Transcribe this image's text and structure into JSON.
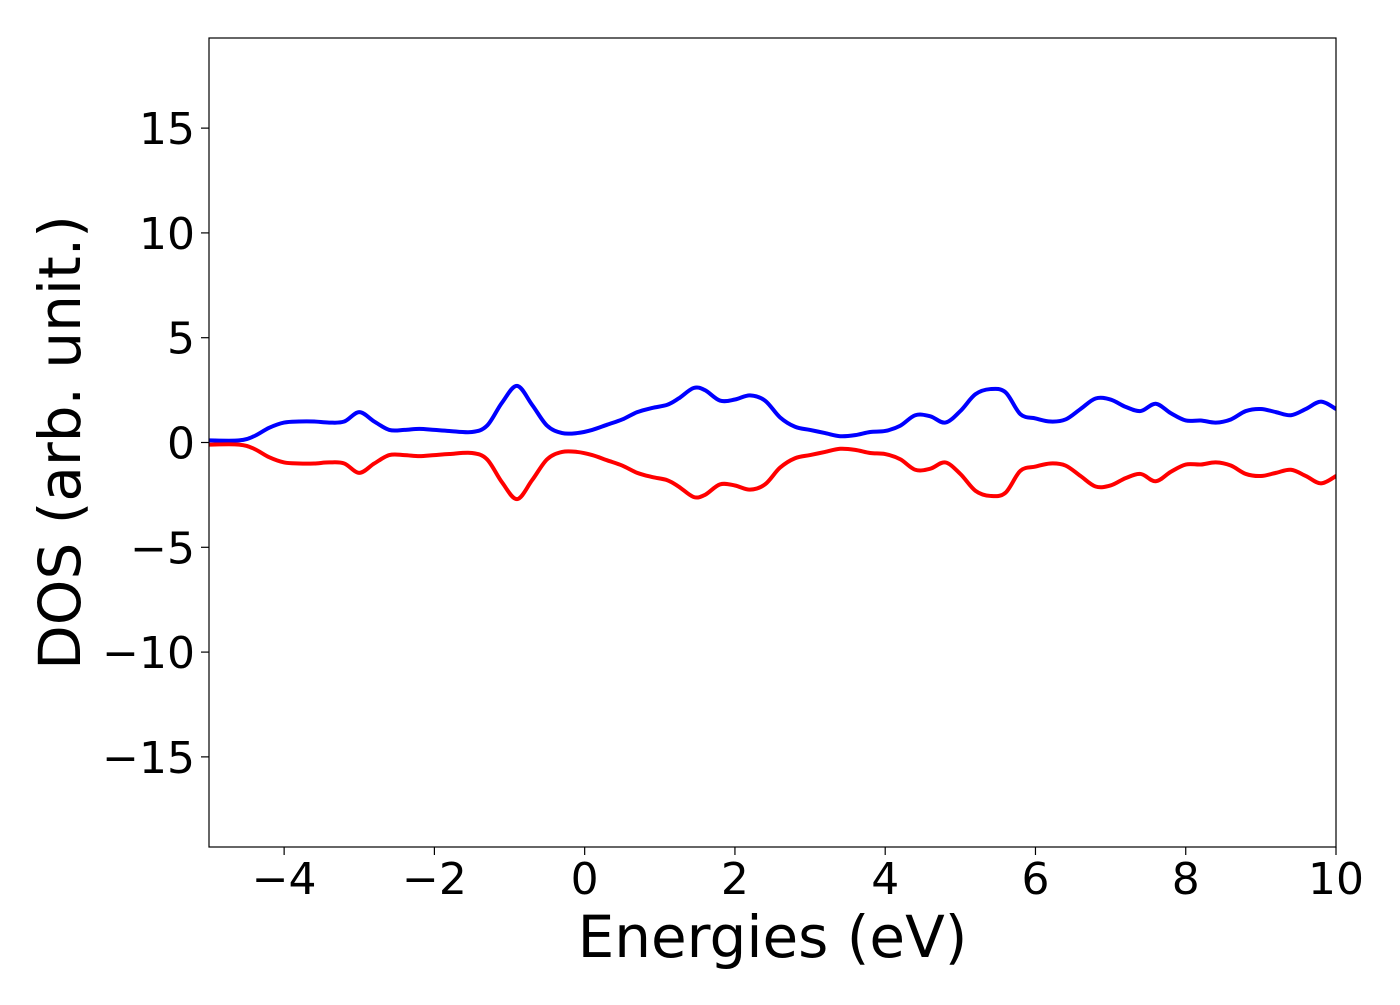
{
  "chart_data": {
    "type": "line",
    "title": "",
    "xlabel": "Energies (eV)",
    "ylabel": "DOS (arb. unit.)",
    "xlim": [
      -5,
      10
    ],
    "ylim": [
      -19.3,
      19.3
    ],
    "x_ticks": [
      -4,
      -2,
      0,
      2,
      4,
      6,
      8,
      10
    ],
    "x_tick_labels": [
      "−4",
      "−2",
      "0",
      "2",
      "4",
      "6",
      "8",
      "10"
    ],
    "y_ticks": [
      15,
      10,
      5,
      0,
      -5,
      -10,
      -15
    ],
    "y_tick_labels": [
      "15",
      "10",
      "5",
      "0",
      "−5",
      "−10",
      "−15"
    ],
    "grid": false,
    "series": [
      {
        "color": "#0000ff",
        "points": [
          [
            -5.0,
            0.1
          ],
          [
            -4.6,
            0.1
          ],
          [
            -4.4,
            0.3
          ],
          [
            -4.2,
            0.7
          ],
          [
            -4.0,
            0.95
          ],
          [
            -3.8,
            1.0
          ],
          [
            -3.6,
            1.0
          ],
          [
            -3.4,
            0.95
          ],
          [
            -3.2,
            1.0
          ],
          [
            -3.0,
            1.45
          ],
          [
            -2.8,
            1.0
          ],
          [
            -2.6,
            0.6
          ],
          [
            -2.4,
            0.6
          ],
          [
            -2.2,
            0.65
          ],
          [
            -2.0,
            0.6
          ],
          [
            -1.8,
            0.55
          ],
          [
            -1.5,
            0.5
          ],
          [
            -1.3,
            0.8
          ],
          [
            -1.1,
            1.9
          ],
          [
            -0.9,
            2.7
          ],
          [
            -0.7,
            1.8
          ],
          [
            -0.5,
            0.8
          ],
          [
            -0.3,
            0.45
          ],
          [
            -0.1,
            0.45
          ],
          [
            0.1,
            0.6
          ],
          [
            0.3,
            0.85
          ],
          [
            0.5,
            1.1
          ],
          [
            0.7,
            1.45
          ],
          [
            0.9,
            1.65
          ],
          [
            1.1,
            1.8
          ],
          [
            1.25,
            2.1
          ],
          [
            1.45,
            2.6
          ],
          [
            1.6,
            2.5
          ],
          [
            1.8,
            2.0
          ],
          [
            2.0,
            2.05
          ],
          [
            2.2,
            2.25
          ],
          [
            2.4,
            2.0
          ],
          [
            2.6,
            1.2
          ],
          [
            2.8,
            0.75
          ],
          [
            3.0,
            0.6
          ],
          [
            3.2,
            0.45
          ],
          [
            3.4,
            0.3
          ],
          [
            3.6,
            0.35
          ],
          [
            3.8,
            0.5
          ],
          [
            4.0,
            0.55
          ],
          [
            4.2,
            0.8
          ],
          [
            4.4,
            1.3
          ],
          [
            4.6,
            1.25
          ],
          [
            4.8,
            0.95
          ],
          [
            5.0,
            1.5
          ],
          [
            5.2,
            2.3
          ],
          [
            5.4,
            2.55
          ],
          [
            5.6,
            2.4
          ],
          [
            5.8,
            1.35
          ],
          [
            6.0,
            1.15
          ],
          [
            6.2,
            1.0
          ],
          [
            6.4,
            1.1
          ],
          [
            6.6,
            1.6
          ],
          [
            6.8,
            2.1
          ],
          [
            7.0,
            2.05
          ],
          [
            7.2,
            1.7
          ],
          [
            7.4,
            1.5
          ],
          [
            7.6,
            1.85
          ],
          [
            7.8,
            1.4
          ],
          [
            8.0,
            1.05
          ],
          [
            8.2,
            1.05
          ],
          [
            8.4,
            0.95
          ],
          [
            8.6,
            1.1
          ],
          [
            8.8,
            1.5
          ],
          [
            9.0,
            1.6
          ],
          [
            9.2,
            1.45
          ],
          [
            9.4,
            1.3
          ],
          [
            9.6,
            1.6
          ],
          [
            9.8,
            1.95
          ],
          [
            10.0,
            1.6
          ]
        ]
      },
      {
        "color": "#ff0000",
        "points": [
          [
            -5.0,
            -0.1
          ],
          [
            -4.6,
            -0.1
          ],
          [
            -4.4,
            -0.3
          ],
          [
            -4.2,
            -0.7
          ],
          [
            -4.0,
            -0.95
          ],
          [
            -3.8,
            -1.0
          ],
          [
            -3.6,
            -1.0
          ],
          [
            -3.4,
            -0.95
          ],
          [
            -3.2,
            -1.0
          ],
          [
            -3.0,
            -1.45
          ],
          [
            -2.8,
            -1.0
          ],
          [
            -2.6,
            -0.6
          ],
          [
            -2.4,
            -0.6
          ],
          [
            -2.2,
            -0.65
          ],
          [
            -2.0,
            -0.6
          ],
          [
            -1.8,
            -0.55
          ],
          [
            -1.5,
            -0.5
          ],
          [
            -1.3,
            -0.8
          ],
          [
            -1.1,
            -1.9
          ],
          [
            -0.9,
            -2.7
          ],
          [
            -0.7,
            -1.8
          ],
          [
            -0.5,
            -0.8
          ],
          [
            -0.3,
            -0.45
          ],
          [
            -0.1,
            -0.45
          ],
          [
            0.1,
            -0.6
          ],
          [
            0.3,
            -0.85
          ],
          [
            0.5,
            -1.1
          ],
          [
            0.7,
            -1.45
          ],
          [
            0.9,
            -1.65
          ],
          [
            1.1,
            -1.8
          ],
          [
            1.25,
            -2.1
          ],
          [
            1.45,
            -2.6
          ],
          [
            1.6,
            -2.5
          ],
          [
            1.8,
            -2.0
          ],
          [
            2.0,
            -2.05
          ],
          [
            2.2,
            -2.25
          ],
          [
            2.4,
            -2.0
          ],
          [
            2.6,
            -1.2
          ],
          [
            2.8,
            -0.75
          ],
          [
            3.0,
            -0.6
          ],
          [
            3.2,
            -0.45
          ],
          [
            3.4,
            -0.3
          ],
          [
            3.6,
            -0.35
          ],
          [
            3.8,
            -0.5
          ],
          [
            4.0,
            -0.55
          ],
          [
            4.2,
            -0.8
          ],
          [
            4.4,
            -1.3
          ],
          [
            4.6,
            -1.25
          ],
          [
            4.8,
            -0.95
          ],
          [
            5.0,
            -1.5
          ],
          [
            5.2,
            -2.3
          ],
          [
            5.4,
            -2.55
          ],
          [
            5.6,
            -2.4
          ],
          [
            5.8,
            -1.35
          ],
          [
            6.0,
            -1.15
          ],
          [
            6.2,
            -1.0
          ],
          [
            6.4,
            -1.1
          ],
          [
            6.6,
            -1.6
          ],
          [
            6.8,
            -2.1
          ],
          [
            7.0,
            -2.05
          ],
          [
            7.2,
            -1.7
          ],
          [
            7.4,
            -1.5
          ],
          [
            7.6,
            -1.85
          ],
          [
            7.8,
            -1.4
          ],
          [
            8.0,
            -1.05
          ],
          [
            8.2,
            -1.05
          ],
          [
            8.4,
            -0.95
          ],
          [
            8.6,
            -1.1
          ],
          [
            8.8,
            -1.5
          ],
          [
            9.0,
            -1.6
          ],
          [
            9.2,
            -1.45
          ],
          [
            9.4,
            -1.3
          ],
          [
            9.6,
            -1.6
          ],
          [
            9.8,
            -1.95
          ],
          [
            10.0,
            -1.6
          ]
        ]
      }
    ]
  }
}
